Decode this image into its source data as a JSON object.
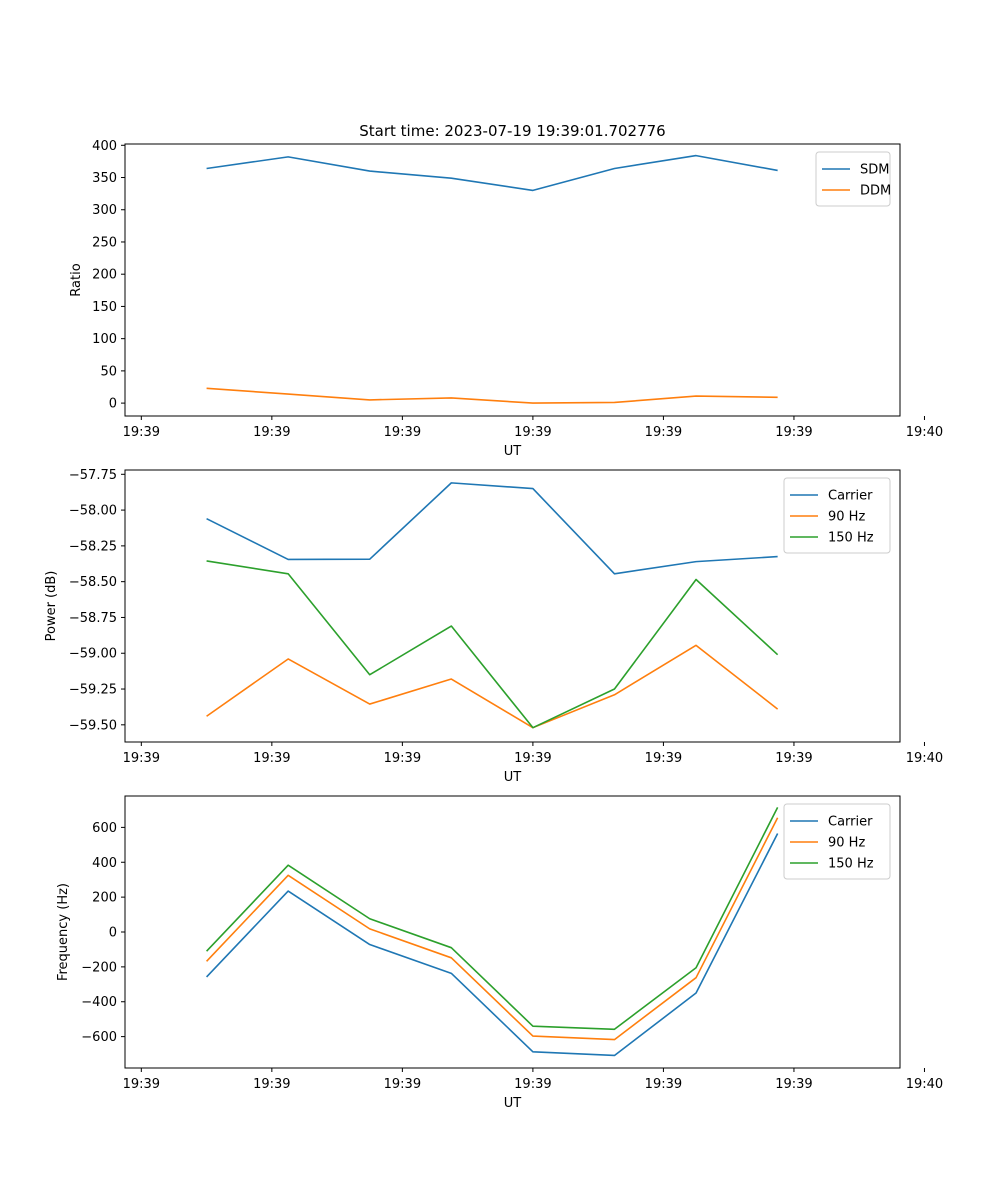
{
  "figure_title": "Start time: 2023-07-19 19:39:01.702776",
  "chart_data": [
    {
      "type": "line",
      "title": "Start time: 2023-07-19 19:39:01.702776",
      "xlabel": "UT",
      "ylabel": "Ratio",
      "x_range": [
        0.0,
        9.5
      ],
      "xticks": [
        0.2,
        1.8,
        3.4,
        5.0,
        6.6,
        8.2,
        9.8
      ],
      "xtick_labels": [
        "19:39",
        "19:39",
        "19:39",
        "19:39",
        "19:39",
        "19:39",
        "19:40"
      ],
      "x": [
        1.0,
        2.0,
        3.0,
        4.0,
        5.0,
        6.0,
        7.0,
        8.0
      ],
      "ylim": [
        -20,
        402
      ],
      "yticks": [
        0,
        50,
        100,
        150,
        200,
        250,
        300,
        350,
        400
      ],
      "ytick_labels": [
        "0",
        "50",
        "100",
        "150",
        "200",
        "250",
        "300",
        "350",
        "400"
      ],
      "legend": "top-right",
      "series": [
        {
          "name": "SDM",
          "color": "#1f77b4",
          "values": [
            364,
            382,
            360,
            349,
            330,
            364,
            384,
            361
          ]
        },
        {
          "name": "DDM",
          "color": "#ff7f0e",
          "values": [
            23,
            14,
            5,
            8,
            0,
            1,
            11,
            9
          ]
        }
      ]
    },
    {
      "type": "line",
      "title": "",
      "xlabel": "UT",
      "ylabel": "Power (dB)",
      "x_range": [
        0.0,
        9.5
      ],
      "xticks": [
        0.2,
        1.8,
        3.4,
        5.0,
        6.6,
        8.2,
        9.8
      ],
      "xtick_labels": [
        "19:39",
        "19:39",
        "19:39",
        "19:39",
        "19:39",
        "19:39",
        "19:40"
      ],
      "x": [
        1.0,
        2.0,
        3.0,
        4.0,
        5.0,
        6.0,
        7.0,
        8.0
      ],
      "ylim": [
        -59.62,
        -57.72
      ],
      "yticks": [
        -59.5,
        -59.25,
        -59.0,
        -58.75,
        -58.5,
        -58.25,
        -58.0,
        -57.75
      ],
      "ytick_labels": [
        "−59.50",
        "−59.25",
        "−59.00",
        "−58.75",
        "−58.50",
        "−58.25",
        "−58.00",
        "−57.75"
      ],
      "legend": "top-right",
      "series": [
        {
          "name": "Carrier",
          "color": "#1f77b4",
          "values": [
            -58.06,
            -58.345,
            -58.343,
            -57.81,
            -57.85,
            -58.445,
            -58.36,
            -58.325
          ]
        },
        {
          "name": "90 Hz",
          "color": "#ff7f0e",
          "values": [
            -59.44,
            -59.04,
            -59.355,
            -59.18,
            -59.52,
            -59.29,
            -58.945,
            -59.39
          ]
        },
        {
          "name": "150 Hz",
          "color": "#2ca02c",
          "values": [
            -58.355,
            -58.445,
            -59.15,
            -58.81,
            -59.52,
            -59.25,
            -58.485,
            -59.01
          ]
        }
      ]
    },
    {
      "type": "line",
      "title": "",
      "xlabel": "UT",
      "ylabel": "Frequency (Hz)",
      "x_range": [
        0.0,
        9.5
      ],
      "xticks": [
        0.2,
        1.8,
        3.4,
        5.0,
        6.6,
        8.2,
        9.8
      ],
      "xtick_labels": [
        "19:39",
        "19:39",
        "19:39",
        "19:39",
        "19:39",
        "19:39",
        "19:40"
      ],
      "x": [
        1.0,
        2.0,
        3.0,
        4.0,
        5.0,
        6.0,
        7.0,
        8.0
      ],
      "ylim": [
        -780,
        780
      ],
      "yticks": [
        -600,
        -400,
        -200,
        0,
        200,
        400,
        600
      ],
      "ytick_labels": [
        "−600",
        "−400",
        "−200",
        "0",
        "200",
        "400",
        "600"
      ],
      "legend": "top-right",
      "series": [
        {
          "name": "Carrier",
          "color": "#1f77b4",
          "values": [
            -258,
            235,
            -72,
            -237,
            -687,
            -708,
            -350,
            565
          ]
        },
        {
          "name": "90 Hz",
          "color": "#ff7f0e",
          "values": [
            -168,
            325,
            18,
            -148,
            -597,
            -617,
            -262,
            655
          ]
        },
        {
          "name": "150 Hz",
          "color": "#2ca02c",
          "values": [
            -110,
            383,
            76,
            -90,
            -540,
            -558,
            -205,
            715
          ]
        }
      ]
    }
  ]
}
